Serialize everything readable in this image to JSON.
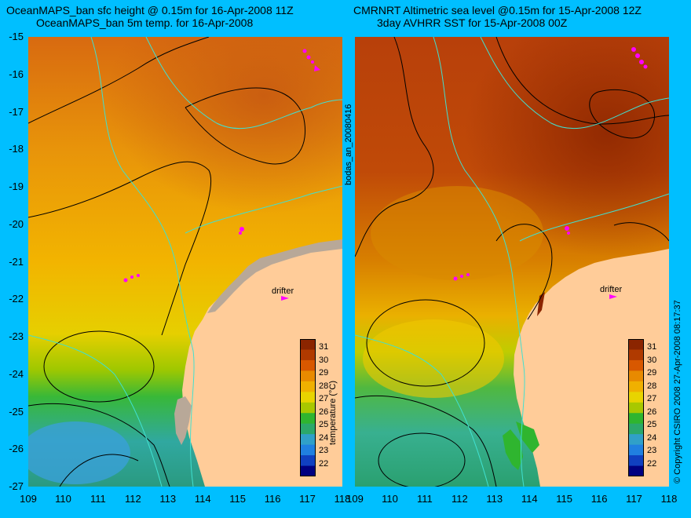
{
  "titles": {
    "left_line1": "OceanMAPS_ban sfc height @ 0.15m for 16-Apr-2008 11Z",
    "left_line2": "OceanMAPS_ban 5m temp. for 16-Apr-2008",
    "right_line1": "CMRNRT Altimetric sea level  @0.15m  for 15-Apr-2008 12Z",
    "right_line2": "3day AVHRR SST for 15-Apr-2008 00Z"
  },
  "side_labels": {
    "run_id": "bodas_an_20080416",
    "copyright": "© Copyright CSIRO 2008   27-Apr-2008 08:17:37"
  },
  "axes": {
    "lat_ticks": [
      "-15",
      "-16",
      "-17",
      "-18",
      "-19",
      "-20",
      "-21",
      "-22",
      "-23",
      "-24",
      "-25",
      "-26",
      "-27"
    ],
    "lon_ticks": [
      "109",
      "110",
      "111",
      "112",
      "113",
      "114",
      "115",
      "116",
      "117",
      "118"
    ]
  },
  "drifter": {
    "label": "drifter",
    "symbol": ">"
  },
  "colorbar": {
    "title": "temperature (°C)",
    "ticks": [
      "31",
      "30",
      "29",
      "28",
      "27",
      "26",
      "25",
      "24",
      "23",
      "22"
    ],
    "colors": [
      "#8b2500",
      "#b03a00",
      "#d85800",
      "#e88a00",
      "#f0b000",
      "#e8d400",
      "#a8c800",
      "#2fb52f",
      "#2ca86a",
      "#30a0c8",
      "#2080e0",
      "#1040c0",
      "#000080"
    ]
  },
  "colors": {
    "background": "#00bfff",
    "land": "#ffcc99",
    "coast_grey": "#b8a898",
    "contour_cyan": "#40e0d0",
    "drifter_magenta": "#ff00ff"
  }
}
